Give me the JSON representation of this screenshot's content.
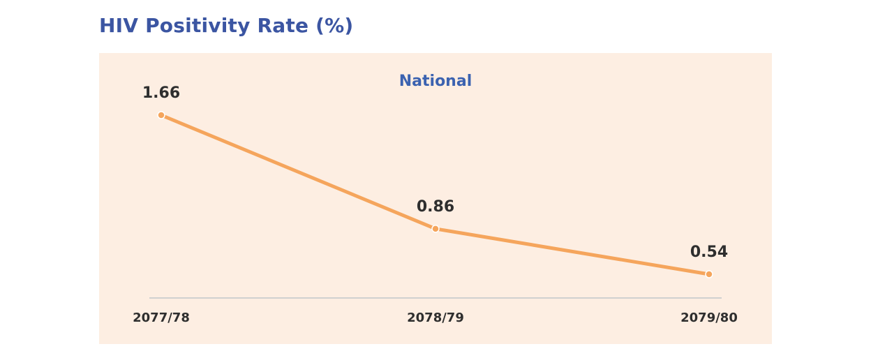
{
  "page": {
    "title": "HIV Positivity Rate (%)"
  },
  "colors": {
    "title": "#3b55a2",
    "series_title": "#3b62b0",
    "panel_background": "#fdeee2",
    "line": "#f5a55c",
    "axis": "#d0d0d0",
    "label": "#2e2e2e"
  },
  "chart_data": {
    "type": "line",
    "title": "National",
    "categories": [
      "2077/78",
      "2078/79",
      "2079/80"
    ],
    "series": [
      {
        "values": [
          1.66,
          0.86,
          0.54
        ]
      }
    ],
    "data_labels": [
      "1.66",
      "0.86",
      "0.54"
    ],
    "ylim": [
      0.3,
      1.7
    ],
    "grid": false,
    "legend": "none",
    "xlabel": "",
    "ylabel": ""
  }
}
